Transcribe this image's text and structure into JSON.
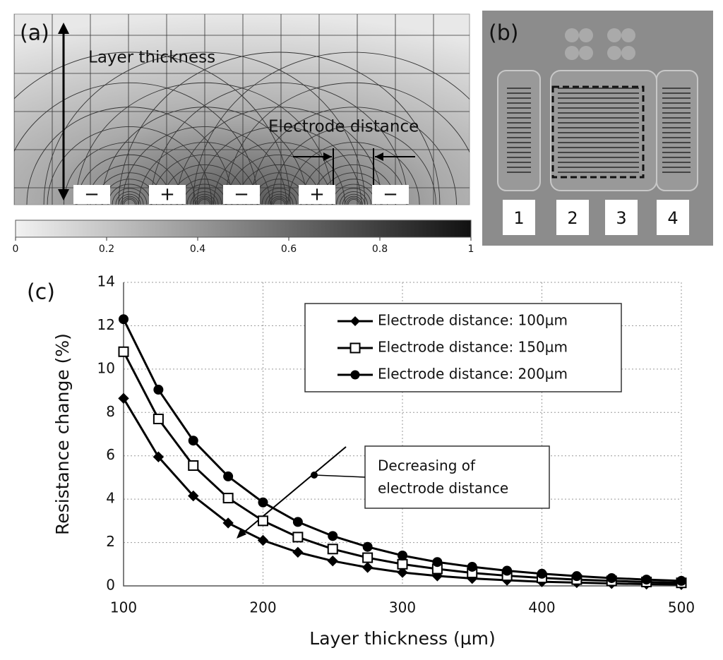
{
  "panel_a": {
    "label": "(a)",
    "layer_thickness": "Layer thickness",
    "electrode_distance": "Electrode distance",
    "electrodes": [
      "−",
      "+",
      "−",
      "+",
      "−"
    ],
    "colorbar_ticks": [
      0,
      0.2,
      0.4,
      0.6,
      0.8,
      1
    ]
  },
  "panel_b": {
    "label": "(b)",
    "chips": [
      "1",
      "2",
      "3",
      "4"
    ]
  },
  "chart_data": {
    "type": "line",
    "label": "(c)",
    "xlabel": "Layer thickness (µm)",
    "ylabel": "Resistance change (%)",
    "x": [
      100,
      125,
      150,
      175,
      200,
      225,
      250,
      275,
      300,
      325,
      350,
      375,
      400,
      425,
      450,
      475,
      500
    ],
    "series": [
      {
        "name": "Electrode distance: 100µm",
        "color": "#000000",
        "marker": "diamond",
        "values": [
          8.65,
          5.95,
          4.15,
          2.9,
          2.1,
          1.55,
          1.15,
          0.85,
          0.62,
          0.46,
          0.34,
          0.26,
          0.19,
          0.15,
          0.11,
          0.08,
          0.06
        ]
      },
      {
        "name": "Electrode distance: 150µm",
        "color": "#000000",
        "marker": "square",
        "values": [
          10.8,
          7.7,
          5.55,
          4.05,
          3.0,
          2.25,
          1.7,
          1.3,
          1.0,
          0.78,
          0.6,
          0.47,
          0.37,
          0.29,
          0.23,
          0.18,
          0.14
        ]
      },
      {
        "name": "Electrode distance: 200µm",
        "color": "#000000",
        "marker": "circle",
        "values": [
          12.3,
          9.05,
          6.7,
          5.05,
          3.85,
          2.95,
          2.3,
          1.8,
          1.4,
          1.1,
          0.88,
          0.7,
          0.56,
          0.45,
          0.36,
          0.29,
          0.23
        ]
      }
    ],
    "xlim": [
      100,
      500
    ],
    "xticks": [
      100,
      200,
      300,
      400,
      500
    ],
    "ylim": [
      0,
      14
    ],
    "yticks": [
      0,
      2,
      4,
      6,
      8,
      10,
      12,
      14
    ],
    "grid": true,
    "legend": "upper right",
    "annotation": [
      "Decreasing of",
      "electrode distance"
    ]
  }
}
